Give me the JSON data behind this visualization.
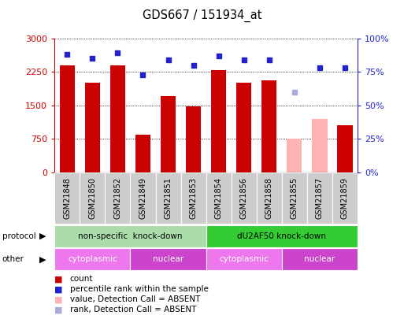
{
  "title": "GDS667 / 151934_at",
  "samples": [
    "GSM21848",
    "GSM21850",
    "GSM21852",
    "GSM21849",
    "GSM21851",
    "GSM21853",
    "GSM21854",
    "GSM21856",
    "GSM21858",
    "GSM21855",
    "GSM21857",
    "GSM21859"
  ],
  "bar_values": [
    2400,
    2000,
    2400,
    850,
    1700,
    1480,
    2280,
    2000,
    2050,
    750,
    1200,
    1050
  ],
  "bar_colors": [
    "#cc0000",
    "#cc0000",
    "#cc0000",
    "#cc0000",
    "#cc0000",
    "#cc0000",
    "#cc0000",
    "#cc0000",
    "#cc0000",
    "#ffb3b3",
    "#ffb3b3",
    "#cc0000"
  ],
  "rank_values": [
    88,
    85,
    89,
    73,
    84,
    80,
    87,
    84,
    84,
    60,
    78,
    78
  ],
  "rank_colors": [
    "#2222cc",
    "#2222cc",
    "#2222cc",
    "#2222cc",
    "#2222cc",
    "#2222cc",
    "#2222cc",
    "#2222cc",
    "#2222cc",
    "#aaaadd",
    "#2222cc",
    "#2222cc"
  ],
  "ylim_left": [
    0,
    3000
  ],
  "ylim_right": [
    0,
    100
  ],
  "yticks_left": [
    0,
    750,
    1500,
    2250,
    3000
  ],
  "yticks_right": [
    0,
    25,
    50,
    75,
    100
  ],
  "ytick_labels_right": [
    "0%",
    "25%",
    "50%",
    "75%",
    "100%"
  ],
  "protocol_groups": [
    {
      "label": "non-specific  knock-down",
      "start": 0,
      "end": 6,
      "color": "#aaddaa"
    },
    {
      "label": "dU2AF50 knock-down",
      "start": 6,
      "end": 12,
      "color": "#33cc33"
    }
  ],
  "other_groups": [
    {
      "label": "cytoplasmic",
      "start": 0,
      "end": 3,
      "color": "#ee77ee"
    },
    {
      "label": "nuclear",
      "start": 3,
      "end": 6,
      "color": "#cc44cc"
    },
    {
      "label": "cytoplasmic",
      "start": 6,
      "end": 9,
      "color": "#ee77ee"
    },
    {
      "label": "nuclear",
      "start": 9,
      "end": 12,
      "color": "#cc44cc"
    }
  ],
  "legend_items": [
    {
      "label": "count",
      "color": "#cc0000"
    },
    {
      "label": "percentile rank within the sample",
      "color": "#2222cc"
    },
    {
      "label": "value, Detection Call = ABSENT",
      "color": "#ffb3b3"
    },
    {
      "label": "rank, Detection Call = ABSENT",
      "color": "#aaaadd"
    }
  ],
  "xtick_bg_color": "#cccccc",
  "left_axis_color": "#cc0000",
  "right_axis_color": "#2222cc",
  "background_color": "#ffffff"
}
